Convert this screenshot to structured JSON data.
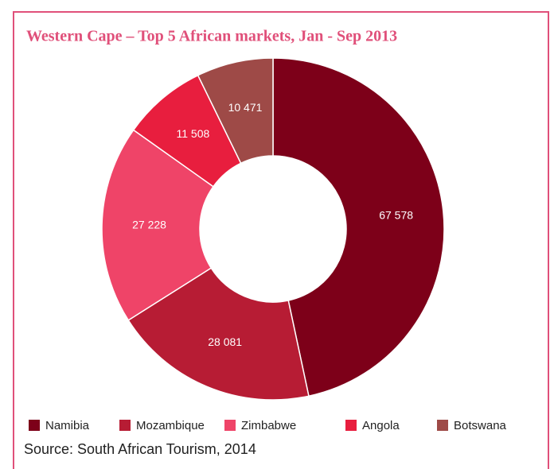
{
  "chart_data": {
    "type": "donut",
    "title": "Western Cape – Top 5 African markets, Jan - Sep 2013",
    "categories": [
      "Namibia",
      "Mozambique",
      "Zimbabwe",
      "Angola",
      "Botswana"
    ],
    "values": [
      67578,
      28081,
      27228,
      11508,
      10471
    ],
    "value_labels": [
      "67 578",
      "28 081",
      "27 228",
      "11 508",
      "10 471"
    ],
    "colors": [
      "#7d0019",
      "#b71c34",
      "#ef4468",
      "#e81e3e",
      "#9e4a47"
    ],
    "legend": "bottom",
    "source": "Source: South African Tourism, 2014"
  }
}
